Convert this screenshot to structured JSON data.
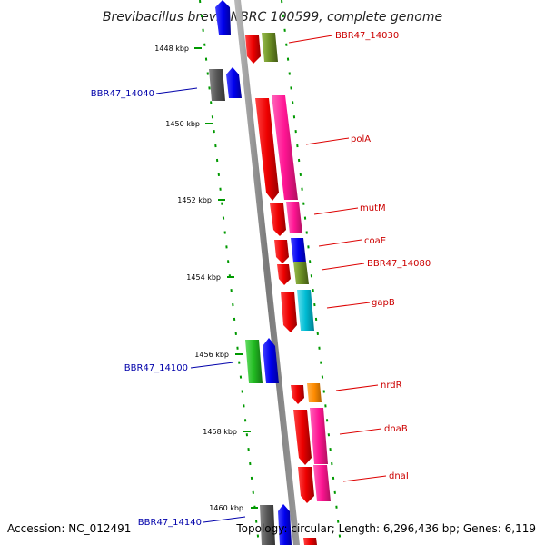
{
  "title": "Brevibacillus brevis NBRC 100599, complete genome",
  "accession": "Accession: NC_012491",
  "summary": "Topology: circular; Length: 6,296,436 bp; Genes: 6,119",
  "ticks": [
    "1448 kbp",
    "1450 kbp",
    "1452 kbp",
    "1454 kbp",
    "1456 kbp",
    "1458 kbp",
    "1460 kbp"
  ],
  "gene_labels": [
    {
      "text": "BBR47_14030",
      "color": "#cc0000"
    },
    {
      "text": "BBR47_14040",
      "color": "#0000aa"
    },
    {
      "text": "polA",
      "color": "#cc0000"
    },
    {
      "text": "mutM",
      "color": "#cc0000"
    },
    {
      "text": "coaE",
      "color": "#cc0000"
    },
    {
      "text": "BBR47_14080",
      "color": "#cc0000"
    },
    {
      "text": "gapB",
      "color": "#cc0000"
    },
    {
      "text": "BBR47_14100",
      "color": "#0000aa"
    },
    {
      "text": "nrdR",
      "color": "#cc0000"
    },
    {
      "text": "dnaB",
      "color": "#cc0000"
    },
    {
      "text": "dnaI",
      "color": "#cc0000"
    },
    {
      "text": "BBR47_14140",
      "color": "#0000aa"
    }
  ],
  "colors": {
    "red": "#ee0000",
    "magenta": "#ff1493",
    "blue": "#0000ee",
    "olive": "#6b8e23",
    "gray": "#555555",
    "cyan": "#00bcd4",
    "green": "#22bb22",
    "orange": "#ff8c00",
    "axis": "#888888",
    "dots": "#009900"
  }
}
